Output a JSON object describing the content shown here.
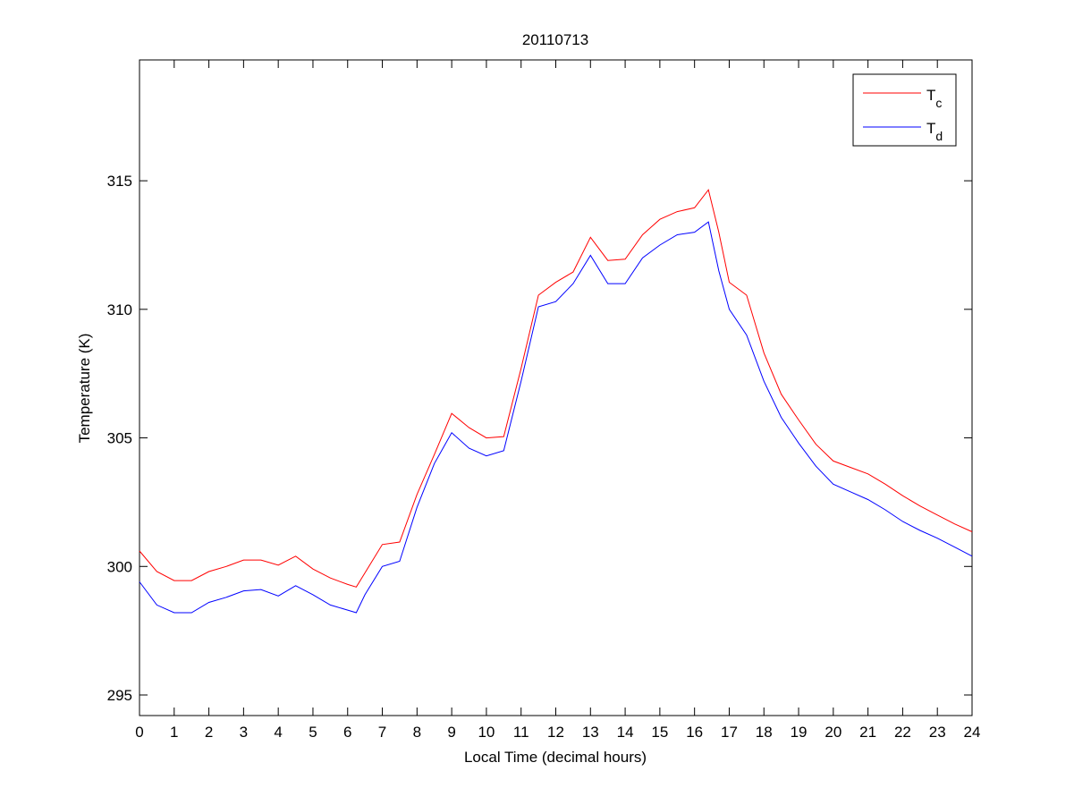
{
  "chart_data": {
    "type": "line",
    "title": "20110713",
    "xlabel": "Local Time (decimal hours)",
    "ylabel": "Temperature (K)",
    "xlim": [
      0,
      24
    ],
    "ylim": [
      294.2,
      319.7
    ],
    "xticks": [
      0,
      1,
      2,
      3,
      4,
      5,
      6,
      7,
      8,
      9,
      10,
      11,
      12,
      13,
      14,
      15,
      16,
      17,
      18,
      19,
      20,
      21,
      22,
      23,
      24
    ],
    "yticks": [
      295,
      300,
      305,
      310,
      315
    ],
    "grid": false,
    "legend_position": "top-right",
    "x": [
      0,
      0.5,
      1,
      1.5,
      2,
      2.5,
      3,
      3.5,
      4,
      4.5,
      5,
      5.5,
      6,
      6.25,
      6.5,
      7,
      7.5,
      8,
      8.5,
      9,
      9.5,
      10,
      10.5,
      11,
      11.5,
      12,
      12.5,
      13,
      13.5,
      14,
      14.5,
      15,
      15.5,
      16,
      16.4,
      16.7,
      17,
      17.5,
      18,
      18.5,
      19,
      19.5,
      20,
      20.5,
      21,
      21.5,
      22,
      22.5,
      23,
      23.5,
      24
    ],
    "series": [
      {
        "name": "T",
        "subscript": "c",
        "color": "#ff0000",
        "values": [
          300.6,
          299.8,
          299.45,
          299.45,
          299.8,
          300.0,
          300.25,
          300.25,
          300.05,
          300.4,
          299.9,
          299.55,
          299.3,
          299.2,
          299.75,
          300.85,
          300.95,
          302.8,
          304.35,
          305.95,
          305.4,
          305.0,
          305.05,
          307.7,
          310.55,
          311.05,
          311.45,
          312.8,
          311.9,
          311.95,
          312.9,
          313.5,
          313.8,
          313.95,
          314.65,
          313.0,
          311.05,
          310.55,
          308.3,
          306.7,
          305.7,
          304.75,
          304.1,
          303.85,
          303.6,
          303.2,
          302.75,
          302.35,
          302.0,
          301.65,
          301.35
        ]
      },
      {
        "name": "T",
        "subscript": "d",
        "color": "#0000ff",
        "values": [
          299.4,
          298.5,
          298.2,
          298.2,
          298.6,
          298.8,
          299.05,
          299.1,
          298.85,
          299.25,
          298.9,
          298.5,
          298.3,
          298.2,
          298.9,
          300.0,
          300.2,
          302.3,
          304.0,
          305.2,
          304.6,
          304.3,
          304.5,
          307.2,
          310.1,
          310.3,
          311.0,
          312.1,
          311.0,
          311.0,
          312.0,
          312.5,
          312.9,
          313.0,
          313.4,
          311.5,
          310.0,
          309.0,
          307.2,
          305.8,
          304.8,
          303.9,
          303.2,
          302.9,
          302.6,
          302.2,
          301.75,
          301.4,
          301.1,
          300.75,
          300.4
        ]
      }
    ]
  }
}
